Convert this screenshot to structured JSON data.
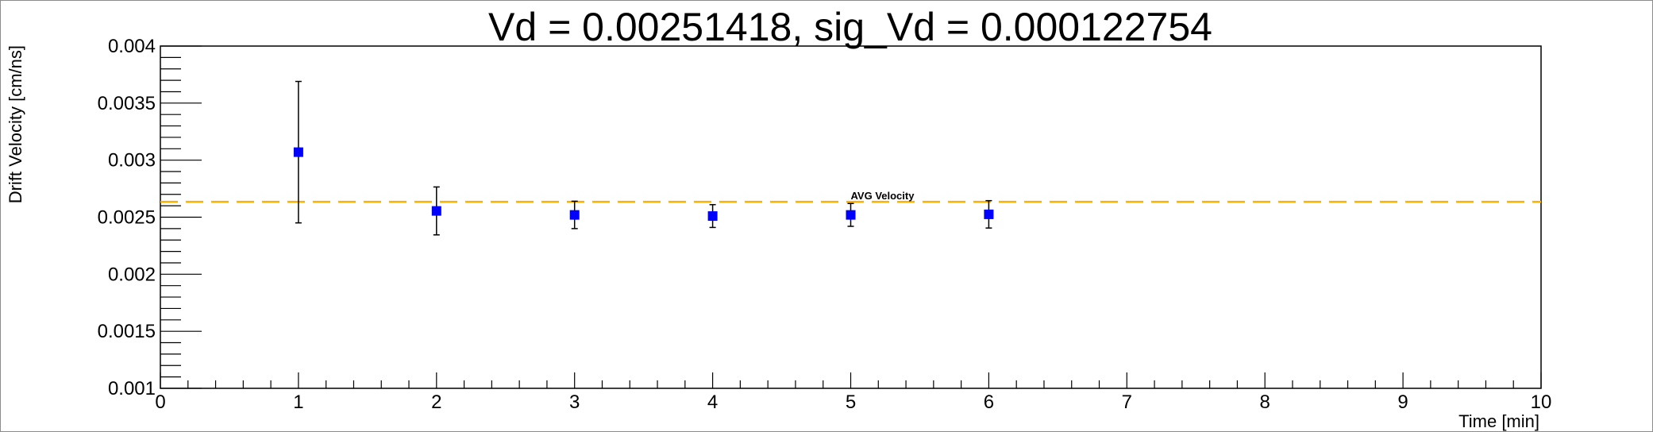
{
  "chart_data": {
    "type": "scatter",
    "title": "Vd = 0.00251418, sig_Vd = 0.000122754",
    "xlabel": "Time [min]",
    "ylabel": "Drift Velocity [cm/ns]",
    "xlim": [
      0,
      10
    ],
    "ylim": [
      0.001,
      0.004
    ],
    "x_ticks": [
      "0",
      "1",
      "2",
      "3",
      "4",
      "5",
      "6",
      "7",
      "8",
      "9",
      "10"
    ],
    "y_ticks": [
      "0.001",
      "0.0015",
      "0.002",
      "0.0025",
      "0.003",
      "0.0035",
      "0.004"
    ],
    "grid": false,
    "series": [
      {
        "color": "#0000ff",
        "points": [
          {
            "x": 1,
            "y": 0.00307,
            "err": 0.00062
          },
          {
            "x": 2,
            "y": 0.002555,
            "err": 0.00021
          },
          {
            "x": 3,
            "y": 0.00252,
            "err": 0.00012
          },
          {
            "x": 4,
            "y": 0.00251,
            "err": 0.0001
          },
          {
            "x": 5,
            "y": 0.00252,
            "err": 0.0001
          },
          {
            "x": 6,
            "y": 0.002525,
            "err": 0.00012
          }
        ]
      }
    ],
    "reference_line": {
      "y": 0.002635,
      "label": "AVG Velocity",
      "label_x": 5,
      "color": "#ffb000"
    }
  }
}
